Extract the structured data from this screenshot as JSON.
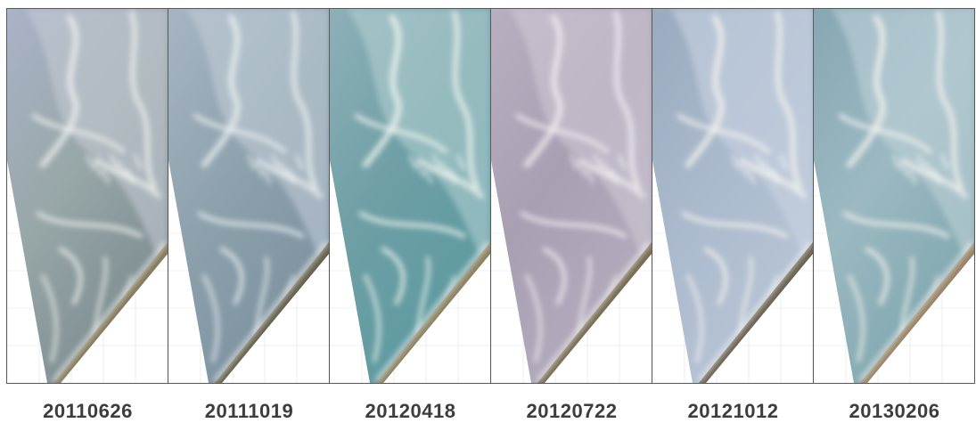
{
  "panels": [
    {
      "date": "20110626",
      "water": [
        "#aab3c8",
        "#98a7a8",
        "#7c8c90"
      ],
      "wash": "#c7ccd6",
      "beach": [
        "#5a5440",
        "#8a7f60",
        "#2e2e26"
      ],
      "bar": "#eef0ee"
    },
    {
      "date": "20111019",
      "water": [
        "#a7b5c3",
        "#8ea2ad",
        "#7c90a0"
      ],
      "wash": "#c4cfd9",
      "beach": [
        "#3c3a34",
        "#6a6550",
        "#26261f"
      ],
      "bar": "#eaf0f2"
    },
    {
      "date": "20120418",
      "water": [
        "#8fb0b8",
        "#6e9fa5",
        "#5c9aa0"
      ],
      "wash": "#b6d2d4",
      "beach": [
        "#b3a781",
        "#8f8565",
        "#5a5038"
      ],
      "bar": "#f2f6f2"
    },
    {
      "date": "20120722",
      "water": [
        "#b8b0c0",
        "#a99fb3",
        "#b4acbe"
      ],
      "wash": "#d2cbd6",
      "beach": [
        "#4a4436",
        "#7b7055",
        "#2a2720"
      ],
      "bar": "#f1eef2"
    },
    {
      "date": "20121012",
      "water": [
        "#9aabbf",
        "#aab9cc",
        "#b8c5d6"
      ],
      "wash": "#cbd5e3",
      "beach": [
        "#a29676",
        "#6e6553",
        "#3c372c"
      ],
      "bar": "#f6f3ee"
    },
    {
      "date": "20130206",
      "water": [
        "#86a7b3",
        "#9cb9c2",
        "#7fa7ae"
      ],
      "wash": "#c1d3da",
      "beach": [
        "#c3ab8b",
        "#9b8668",
        "#6b5c45"
      ],
      "bar": "#f5f3ef"
    }
  ]
}
